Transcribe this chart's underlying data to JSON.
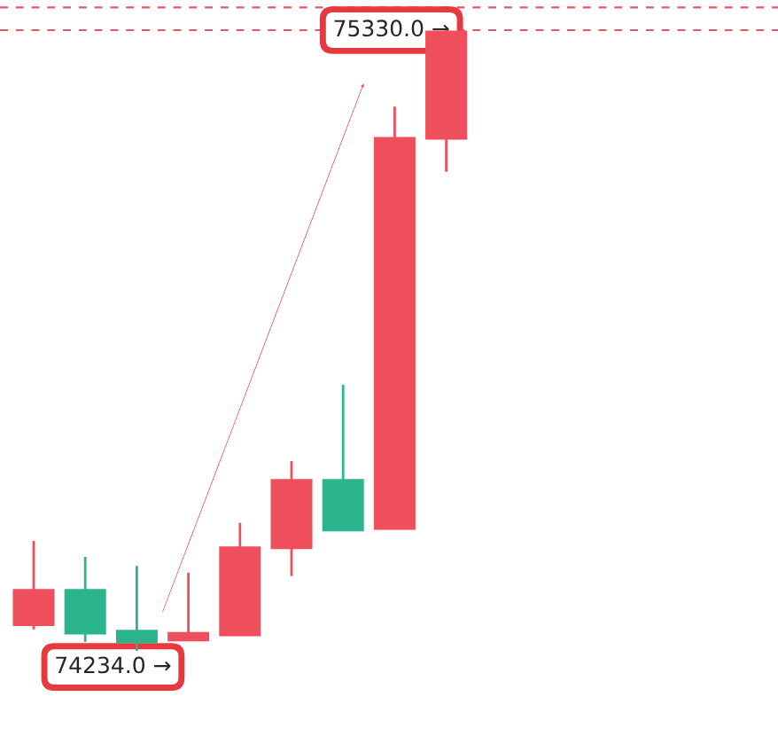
{
  "chart_data": {
    "type": "candlestick",
    "categories": [
      null,
      null,
      null,
      null,
      null,
      null,
      null,
      null,
      null
    ],
    "ohlc": [
      [
        74280,
        74428,
        74272,
        74341
      ],
      [
        74341,
        74400,
        74250,
        74265
      ],
      [
        74269,
        74384,
        74234,
        74250
      ],
      [
        74253,
        74372,
        74253,
        74265
      ],
      [
        74262,
        74460,
        74262,
        74416
      ],
      [
        74416,
        74569,
        74366,
        74535
      ],
      [
        74535,
        74704,
        74447,
        74447
      ],
      [
        74450,
        75195,
        74450,
        75139
      ],
      [
        75139,
        75330,
        75080,
        75327
      ]
    ],
    "colors": [
      "#ef4f5c",
      "#2bb58d",
      "#2bb58d",
      "#ef4f5c",
      "#ef4f5c",
      "#ef4f5c",
      "#2bb58d",
      "#ef4f5c",
      "#ef4f5c"
    ],
    "ref_lines": [
      {
        "axis": "y",
        "value": 75330,
        "color": "#e05a66",
        "line_style": "dashed"
      },
      {
        "axis": "y",
        "value": 75370,
        "color": "#e05a66",
        "line_style": "dashed"
      }
    ],
    "annotations": [
      "74234.0 →",
      "75330.0 →"
    ]
  }
}
